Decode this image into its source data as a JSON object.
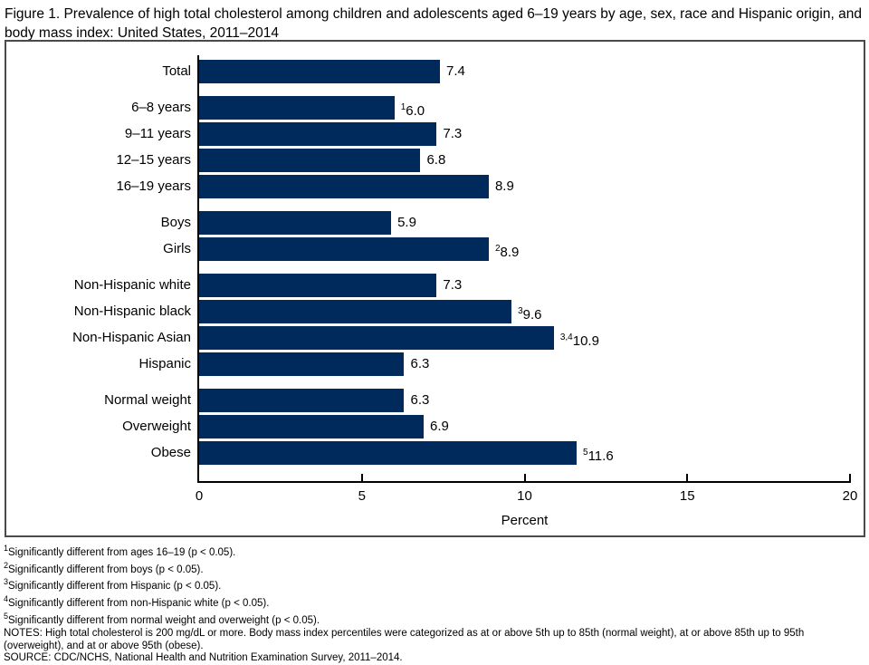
{
  "chart_data": {
    "type": "bar",
    "orientation": "horizontal",
    "title": "Figure 1. Prevalence of high total cholesterol among children and adolescents aged 6–19 years by age, sex, race and Hispanic origin, and body mass index: United States, 2011–2014",
    "xlabel": "Percent",
    "xlim": [
      0,
      20
    ],
    "xticks": [
      0,
      5,
      10,
      15,
      20
    ],
    "bar_color": "#002a5c",
    "grid": false,
    "legend": null,
    "groups": [
      {
        "name": "total",
        "bars": [
          {
            "label": "Total",
            "value": 7.4,
            "display": "7.4",
            "sup": ""
          }
        ]
      },
      {
        "name": "age",
        "bars": [
          {
            "label": "6–8 years",
            "value": 6.0,
            "display": "6.0",
            "sup": "1"
          },
          {
            "label": "9–11 years",
            "value": 7.3,
            "display": "7.3",
            "sup": ""
          },
          {
            "label": "12–15 years",
            "value": 6.8,
            "display": "6.8",
            "sup": ""
          },
          {
            "label": "16–19 years",
            "value": 8.9,
            "display": "8.9",
            "sup": ""
          }
        ]
      },
      {
        "name": "sex",
        "bars": [
          {
            "label": "Boys",
            "value": 5.9,
            "display": "5.9",
            "sup": ""
          },
          {
            "label": "Girls",
            "value": 8.9,
            "display": "8.9",
            "sup": "2"
          }
        ]
      },
      {
        "name": "race-hispanic-origin",
        "bars": [
          {
            "label": "Non-Hispanic white",
            "value": 7.3,
            "display": "7.3",
            "sup": ""
          },
          {
            "label": "Non-Hispanic black",
            "value": 9.6,
            "display": "9.6",
            "sup": "3"
          },
          {
            "label": "Non-Hispanic Asian",
            "value": 10.9,
            "display": "10.9",
            "sup": "3,4"
          },
          {
            "label": "Hispanic",
            "value": 6.3,
            "display": "6.3",
            "sup": ""
          }
        ]
      },
      {
        "name": "body-mass-index",
        "bars": [
          {
            "label": "Normal weight",
            "value": 6.3,
            "display": "6.3",
            "sup": ""
          },
          {
            "label": "Overweight",
            "value": 6.9,
            "display": "6.9",
            "sup": ""
          },
          {
            "label": "Obese",
            "value": 11.6,
            "display": "11.6",
            "sup": "5"
          }
        ]
      }
    ]
  },
  "footnotes": [
    {
      "sup": "1",
      "text": "Significantly different from ages 16–19 (p < 0.05)."
    },
    {
      "sup": "2",
      "text": "Significantly different from boys (p < 0.05)."
    },
    {
      "sup": "3",
      "text": "Significantly different from Hispanic (p < 0.05)."
    },
    {
      "sup": "4",
      "text": "Significantly different from non-Hispanic white (p < 0.05)."
    },
    {
      "sup": "5",
      "text": "Significantly different from normal weight and overweight (p < 0.05)."
    },
    {
      "sup": "",
      "text": "NOTES: High total cholesterol is 200 mg/dL or more. Body mass index percentiles were categorized as at or above 5th up to 85th (normal weight), at or above 85th up to 95th (overweight), and at or above 95th (obese)."
    },
    {
      "sup": "",
      "text": "SOURCE: CDC/NCHS, National Health and Nutrition Examination Survey, 2011–2014."
    }
  ]
}
